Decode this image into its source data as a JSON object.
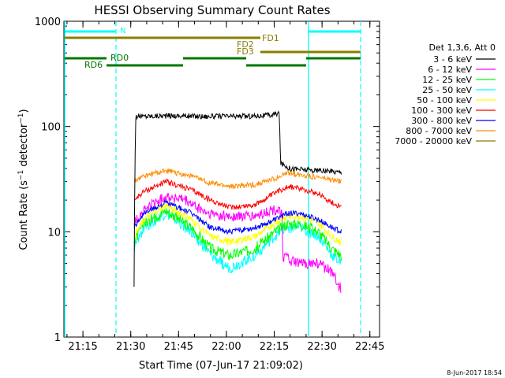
{
  "chart_data": {
    "type": "line",
    "title": "HESSI Observing Summary Count Rates",
    "xlabel": "Start Time (07-Jun-17 21:09:02)",
    "ylabel": "Count Rate (s⁻¹ detector⁻¹)",
    "yscale": "log",
    "ylim": [
      1,
      1000
    ],
    "xlim_minutes_since_21_09_02": [
      0,
      99
    ],
    "xticks": [
      "21:15",
      "21:30",
      "21:45",
      "22:00",
      "22:15",
      "22:30",
      "22:45"
    ],
    "yticks": [
      "1",
      "10",
      "100",
      "1000"
    ],
    "legend_title": "Det 1,3,6, Att 0",
    "legend_position": "right",
    "series": [
      {
        "name": "3 - 6 keV",
        "color": "#000000",
        "t": [
          22,
          22,
          22.5,
          33,
          44,
          55,
          65,
          67.5,
          68,
          71,
          80,
          87
        ],
        "v": [
          3,
          7,
          125,
          127,
          125,
          125,
          128,
          135,
          45,
          40,
          38,
          37
        ]
      },
      {
        "name": "6 - 12 keV",
        "color": "#ff00ff",
        "t": [
          22,
          25,
          32,
          38,
          45,
          52,
          60,
          65,
          68.5,
          68.6,
          73,
          80,
          85,
          86,
          87
        ],
        "v": [
          12,
          16,
          22,
          20,
          15,
          14,
          14,
          16,
          16,
          6,
          5,
          5,
          4,
          3,
          3
        ]
      },
      {
        "name": "12 - 25 keV",
        "color": "#00ff00",
        "t": [
          22,
          25,
          32,
          40,
          46,
          52,
          60,
          66,
          70,
          74,
          80,
          84,
          87
        ],
        "v": [
          8,
          12,
          16,
          11,
          7,
          6,
          7,
          10,
          12,
          12,
          10,
          7,
          6
        ]
      },
      {
        "name": "25 - 50 keV",
        "color": "#00ffff",
        "t": [
          22,
          25,
          32,
          40,
          46,
          52,
          60,
          66,
          70,
          74,
          80,
          84,
          87
        ],
        "v": [
          7,
          11,
          15,
          10,
          6,
          4.5,
          6,
          9,
          11,
          11,
          9,
          6,
          5
        ]
      },
      {
        "name": "50 - 100 keV",
        "color": "#ffff00",
        "t": [
          22,
          25,
          32,
          40,
          46,
          52,
          60,
          66,
          70,
          74,
          80,
          84,
          87
        ],
        "v": [
          9,
          13,
          18,
          13,
          9,
          8,
          9,
          12,
          14,
          14,
          12,
          9,
          8
        ]
      },
      {
        "name": "100 - 300 keV",
        "color": "#ff0000",
        "t": [
          22,
          25,
          32,
          40,
          46,
          52,
          60,
          66,
          70,
          74,
          80,
          84,
          87
        ],
        "v": [
          20,
          24,
          30,
          25,
          20,
          17,
          18,
          23,
          27,
          26,
          23,
          19,
          17
        ]
      },
      {
        "name": "300 - 800 keV",
        "color": "#0000ff",
        "t": [
          22,
          25,
          32,
          40,
          46,
          52,
          60,
          66,
          70,
          74,
          80,
          84,
          87
        ],
        "v": [
          11,
          15,
          19,
          15,
          11,
          10,
          11,
          13,
          15,
          15,
          13,
          11,
          10
        ]
      },
      {
        "name": "800 - 7000 keV",
        "color": "#ff8c00",
        "t": [
          22,
          25,
          32,
          40,
          46,
          52,
          60,
          66,
          70,
          74,
          80,
          84,
          87
        ],
        "v": [
          30,
          34,
          38,
          34,
          29,
          27,
          28,
          32,
          36,
          35,
          33,
          31,
          30
        ]
      },
      {
        "name": "7000 - 20000 keV",
        "color": "#8b7d00",
        "t": [],
        "v": []
      }
    ],
    "annotations": [
      {
        "label": "N",
        "color": "#00ffff"
      },
      {
        "label": "FD1",
        "color": "#8b7d00"
      },
      {
        "label": "FD2",
        "color": "#8b7d00"
      },
      {
        "label": "FD3",
        "color": "#8b7d00"
      },
      {
        "label": "RD0",
        "color": "#00aa00"
      },
      {
        "label": "RD6",
        "color": "#00aa00"
      }
    ]
  },
  "footer": {
    "date_stamp": "8-Jun-2017 18:54"
  }
}
